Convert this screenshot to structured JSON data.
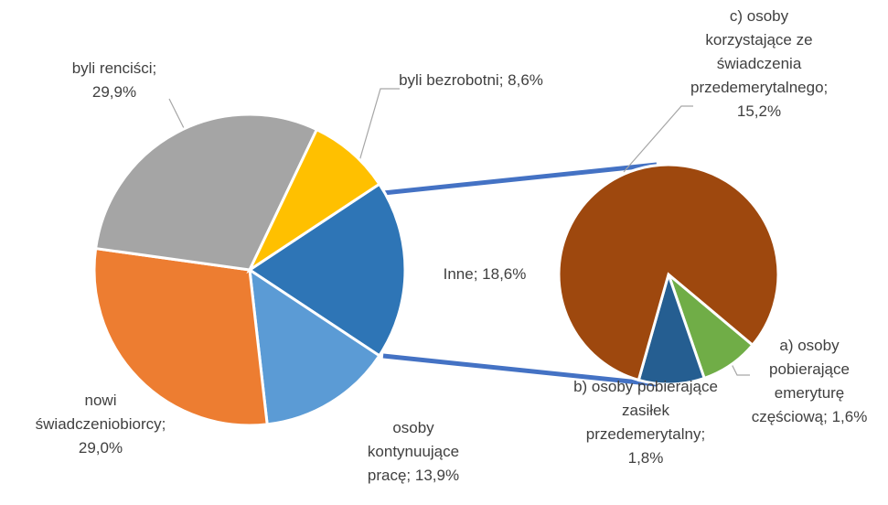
{
  "chart_data": {
    "type": "pie-of-pie",
    "main": {
      "categories": [
        "Inne;",
        "osoby kontynuujące pracę;",
        "nowi świadczeniobiorcy;",
        "byli renciści;",
        "byli bezrobotni;"
      ],
      "values": [
        18.6,
        13.9,
        29.0,
        29.9,
        8.6
      ],
      "value_labels": [
        "18,6%",
        "13,9%",
        "29,0%",
        "29,9%",
        "8,6%"
      ],
      "colors": [
        "#2e75b6",
        "#5b9bd5",
        "#ed7d31",
        "#a5a5a5",
        "#ffc000"
      ]
    },
    "secondary": {
      "categories": [
        "a) osoby pobierające emeryturę częściową;",
        "b) osoby pobierające zasiłek przedemerytalny;",
        "c) osoby korzystające ze świadczenia przedemerytalnego;"
      ],
      "values": [
        1.6,
        1.8,
        15.2
      ],
      "value_labels": [
        "1,6%",
        "1,8%",
        "15,2%"
      ],
      "colors": [
        "#70ad47",
        "#255e91",
        "#9e480e"
      ]
    }
  }
}
